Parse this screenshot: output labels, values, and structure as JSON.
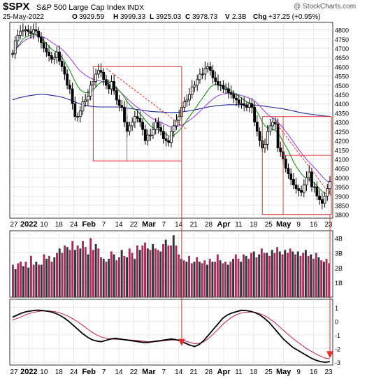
{
  "header": {
    "symbol": "$SPX",
    "name": "S&P 500 Large Cap Index",
    "exchange": "INDX",
    "watermark": "@ StockCharts.com",
    "date": "25-May-2022",
    "open_label": "O",
    "open": "3929.59",
    "high_label": "H",
    "high": "3999.33",
    "low_label": "L",
    "low": "3925.03",
    "close_label": "C",
    "close": "3978.73",
    "volume_label": "V",
    "volume": "2.3B",
    "chg_label": "Chg",
    "chg": "+37.25 (+0.95%)"
  },
  "colors": {
    "frame": "#333333",
    "grid": "#d9d9d9",
    "price_bar": "#000000",
    "ma_green": "#1e8c1e",
    "ma_violet": "#9a4fd6",
    "ma_blue": "#23239b",
    "volume_up": "#a0305f",
    "volume_down": "#333333",
    "annotation": "#e23030",
    "osc_line": "#000000",
    "osc_signal": "#c0306a"
  },
  "x_axis": {
    "top_labels": [
      "27",
      "2022",
      "10",
      "18",
      "24",
      "Feb",
      "7",
      "14",
      "22",
      "Mar",
      "7",
      "14",
      "21",
      "28",
      "Apr",
      "11",
      "18",
      "25",
      "May",
      "9",
      "16",
      "23"
    ],
    "bottom_labels": [
      "27",
      "2022",
      "10",
      "18",
      "24",
      "Feb",
      "7",
      "14",
      "22",
      "Mar",
      "7",
      "14",
      "21",
      "28",
      "Apr",
      "11",
      "18",
      "25",
      "May",
      "9",
      "16",
      "23"
    ]
  },
  "chart_data": [
    {
      "type": "line",
      "panel": "price",
      "title": "$SPX S&P 500 Large Cap Index",
      "ylim": [
        3780,
        4840
      ],
      "yticks": [
        "4800",
        "4750",
        "4700",
        "4650",
        "4600",
        "4550",
        "4500",
        "4450",
        "4400",
        "4350",
        "4300",
        "4250",
        "4200",
        "4150",
        "4100",
        "4050",
        "4000",
        "3950",
        "3900",
        "3850",
        "3800"
      ],
      "close_series": [
        4670,
        4740,
        4770,
        4790,
        4796,
        4800,
        4790,
        4780,
        4800,
        4793,
        4760,
        4730,
        4700,
        4680,
        4660,
        4640,
        4650,
        4680,
        4630,
        4600,
        4560,
        4500,
        4480,
        4400,
        4330,
        4330,
        4360,
        4410,
        4420,
        4440,
        4500,
        4520,
        4560,
        4580,
        4570,
        4530,
        4500,
        4480,
        4520,
        4470,
        4420,
        4390,
        4380,
        4300,
        4250,
        4280,
        4300,
        4330,
        4320,
        4300,
        4260,
        4200,
        4230,
        4230,
        4260,
        4300,
        4270,
        4250,
        4210,
        4200,
        4190,
        4250,
        4280,
        4310,
        4330,
        4380,
        4410,
        4420,
        4450,
        4490,
        4500,
        4530,
        4560,
        4560,
        4590,
        4600,
        4580,
        4540,
        4520,
        4500,
        4500,
        4480,
        4480,
        4460,
        4450,
        4430,
        4420,
        4400,
        4400,
        4390,
        4380,
        4400,
        4380,
        4300,
        4250,
        4200,
        4160,
        4180,
        4250,
        4280,
        4300,
        4290,
        4160,
        4140,
        4100,
        4050,
        4020,
        3990,
        3960,
        3940,
        3930,
        3920,
        3960,
        4000,
        4030,
        3950,
        3950,
        3900,
        3880,
        3860,
        3900,
        3940,
        3979
      ],
      "ma_short": [
        4670,
        4690,
        4710,
        4730,
        4750,
        4760,
        4765,
        4770,
        4775,
        4775,
        4765,
        4755,
        4740,
        4725,
        4710,
        4695,
        4685,
        4680,
        4665,
        4650,
        4630,
        4605,
        4580,
        4550,
        4520,
        4495,
        4475,
        4465,
        4460,
        4460,
        4465,
        4475,
        4490,
        4505,
        4515,
        4520,
        4520,
        4515,
        4510,
        4500,
        4485,
        4470,
        4455,
        4435,
        4410,
        4395,
        4380,
        4370,
        4360,
        4345,
        4330,
        4310,
        4295,
        4280,
        4270,
        4265,
        4260,
        4255,
        4245,
        4235,
        4225,
        4225,
        4230,
        4240,
        4255,
        4270,
        4290,
        4310,
        4330,
        4350,
        4370,
        4390,
        4410,
        4430,
        4450,
        4470,
        4490,
        4500,
        4505,
        4505,
        4500,
        4495,
        4490,
        4480,
        4470,
        4460,
        4450,
        4440,
        4430,
        4420,
        4410,
        4405,
        4400,
        4380,
        4355,
        4330,
        4300,
        4280,
        4270,
        4265,
        4260,
        4255,
        4240,
        4220,
        4195,
        4170,
        4145,
        4115,
        4085,
        4060,
        4040,
        4020,
        4005,
        3995,
        3990,
        3980,
        3970,
        3955,
        3940,
        3925,
        3915,
        3915,
        3925
      ],
      "ma_mid": [
        4670,
        4690,
        4705,
        4720,
        4735,
        4745,
        4752,
        4758,
        4763,
        4768,
        4768,
        4765,
        4760,
        4752,
        4743,
        4733,
        4723,
        4715,
        4705,
        4693,
        4680,
        4665,
        4648,
        4630,
        4610,
        4592,
        4577,
        4565,
        4555,
        4545,
        4538,
        4532,
        4528,
        4525,
        4522,
        4518,
        4512,
        4505,
        4498,
        4490,
        4480,
        4468,
        4456,
        4442,
        4428,
        4415,
        4402,
        4390,
        4380,
        4370,
        4360,
        4348,
        4337,
        4326,
        4318,
        4312,
        4306,
        4300,
        4292,
        4285,
        4278,
        4275,
        4274,
        4276,
        4280,
        4285,
        4292,
        4300,
        4310,
        4320,
        4332,
        4345,
        4358,
        4372,
        4386,
        4400,
        4413,
        4425,
        4435,
        4443,
        4448,
        4452,
        4455,
        4457,
        4457,
        4455,
        4452,
        4448,
        4444,
        4440,
        4435,
        4430,
        4425,
        4415,
        4402,
        4388,
        4372,
        4357,
        4343,
        4332,
        4322,
        4313,
        4300,
        4285,
        4268,
        4250,
        4232,
        4212,
        4192,
        4172,
        4152,
        4133,
        4115,
        4098,
        4083,
        4068,
        4053,
        4038,
        4022,
        4006,
        3992,
        3980,
        3970
      ],
      "ma_long": [
        4420,
        4425,
        4430,
        4433,
        4436,
        4439,
        4442,
        4444,
        4446,
        4448,
        4449,
        4450,
        4450,
        4449,
        4447,
        4445,
        4443,
        4441,
        4438,
        4435,
        4431,
        4426,
        4421,
        4415,
        4409,
        4403,
        4398,
        4394,
        4391,
        4388,
        4386,
        4384,
        4383,
        4382,
        4382,
        4382,
        4382,
        4382,
        4382,
        4382,
        4382,
        4381,
        4380,
        4378,
        4376,
        4374,
        4372,
        4370,
        4368,
        4366,
        4364,
        4362,
        4360,
        4358,
        4357,
        4356,
        4355,
        4355,
        4354,
        4353,
        4352,
        4352,
        4352,
        4353,
        4354,
        4355,
        4357,
        4359,
        4361,
        4363,
        4366,
        4369,
        4372,
        4375,
        4378,
        4381,
        4384,
        4386,
        4388,
        4390,
        4391,
        4392,
        4393,
        4394,
        4394,
        4394,
        4394,
        4394,
        4394,
        4393,
        4393,
        4393,
        4393,
        4392,
        4391,
        4390,
        4388,
        4386,
        4384,
        4382,
        4380,
        4378,
        4376,
        4374,
        4372,
        4369,
        4366,
        4363,
        4360,
        4357,
        4354,
        4351,
        4348,
        4346,
        4344,
        4342,
        4340,
        4338,
        4336,
        4334,
        4333,
        4332,
        4331
      ],
      "annotations": [
        "Feb consolidation box",
        "Feb-Mar declining trendline",
        "May consolidation box",
        "May declining trendline"
      ]
    },
    {
      "type": "bar",
      "panel": "volume",
      "ylim": [
        0,
        4.5
      ],
      "yticks": [
        "4B",
        "3B",
        "2B",
        "1B"
      ],
      "values": [
        2.2,
        1.9,
        2.3,
        2.4,
        2.1,
        2.4,
        2.0,
        2.8,
        2.2,
        2.4,
        2.2,
        2.2,
        2.9,
        2.6,
        2.8,
        2.4,
        2.7,
        3.0,
        3.3,
        3.0,
        3.5,
        3.4,
        3.2,
        3.8,
        3.2,
        3.5,
        3.3,
        3.8,
        3.4,
        2.9,
        4.0,
        3.2,
        3.6,
        3.3,
        2.7,
        2.6,
        2.4,
        2.6,
        3.1,
        2.9,
        2.5,
        2.7,
        3.2,
        2.8,
        2.7,
        3.3,
        3.0,
        2.6,
        3.5,
        3.2,
        3.5,
        3.7,
        3.3,
        3.2,
        3.6,
        3.3,
        3.2,
        3.1,
        3.6,
        3.9,
        3.5,
        3.5,
        4.2,
        3.5,
        2.9,
        2.6,
        2.5,
        2.4,
        2.8,
        2.3,
        2.4,
        2.7,
        2.4,
        2.3,
        2.5,
        2.2,
        2.6,
        2.4,
        2.4,
        2.9,
        2.5,
        2.3,
        2.4,
        2.2,
        2.4,
        2.6,
        2.9,
        2.6,
        2.4,
        2.9,
        2.8,
        2.6,
        3.0,
        3.1,
        2.7,
        2.9,
        3.3,
        3.0,
        3.0,
        2.8,
        3.2,
        3.0,
        3.4,
        3.1,
        2.9,
        3.2,
        3.0,
        3.3,
        3.1,
        2.9,
        3.1,
        2.8,
        3.0,
        3.2,
        2.8,
        2.9,
        2.6,
        3.0,
        2.7,
        2.5,
        2.4,
        2.6,
        2.3
      ],
      "up_down": [
        1,
        0,
        1,
        1,
        0,
        1,
        0,
        1,
        1,
        0,
        1,
        0,
        1,
        0,
        1,
        1,
        0,
        1,
        0,
        1,
        1,
        0,
        1,
        1,
        0,
        1,
        0,
        1,
        1,
        0,
        1,
        1,
        0,
        1,
        1,
        0,
        1,
        0,
        1,
        0,
        1,
        1,
        0,
        1,
        0,
        1,
        1,
        0,
        1,
        0,
        1,
        1,
        0,
        1,
        0,
        1,
        1,
        0,
        1,
        0,
        1,
        1,
        0,
        1,
        1,
        0,
        1,
        0,
        1,
        1,
        0,
        1,
        0,
        1,
        1,
        0,
        1,
        0,
        1,
        1,
        0,
        1,
        1,
        0,
        1,
        0,
        1,
        1,
        0,
        1,
        0,
        1,
        1,
        0,
        1,
        0,
        1,
        1,
        0,
        1,
        0,
        1,
        1,
        0,
        1,
        0,
        1,
        1,
        0,
        1,
        0,
        1,
        1,
        0,
        1,
        0,
        1,
        1,
        0,
        1,
        0,
        1,
        1,
        0
      ]
    },
    {
      "type": "line",
      "panel": "oscillator",
      "ylim": [
        -3.2,
        1.6
      ],
      "yticks": [
        "1",
        "0",
        "-1",
        "-2",
        "-3"
      ],
      "line": [
        0.3,
        0.45,
        0.6,
        0.7,
        0.75,
        0.8,
        0.8,
        0.75,
        0.7,
        0.6,
        0.45,
        0.25,
        0.0,
        -0.3,
        -0.6,
        -0.9,
        -1.15,
        -1.35,
        -1.45,
        -1.5,
        -1.4,
        -1.3,
        -1.25,
        -1.3,
        -1.35,
        -1.4,
        -1.45,
        -1.5,
        -1.55,
        -1.55,
        -1.5,
        -1.45,
        -1.4,
        -1.35,
        -1.3,
        -1.35,
        -1.45,
        -1.6,
        -1.75,
        -1.85,
        -1.7,
        -1.4,
        -1.0,
        -0.6,
        -0.2,
        0.2,
        0.45,
        0.6,
        0.7,
        0.8,
        0.78,
        0.72,
        0.62,
        0.45,
        0.2,
        -0.1,
        -0.5,
        -0.9,
        -1.3,
        -1.6,
        -1.9,
        -2.1,
        -2.3,
        -2.5,
        -2.7,
        -2.85,
        -2.95,
        -3.0,
        -2.95
      ],
      "signal": [
        0.1,
        0.2,
        0.35,
        0.5,
        0.6,
        0.68,
        0.73,
        0.75,
        0.74,
        0.7,
        0.62,
        0.5,
        0.35,
        0.15,
        -0.05,
        -0.3,
        -0.55,
        -0.8,
        -1.0,
        -1.15,
        -1.25,
        -1.3,
        -1.32,
        -1.33,
        -1.34,
        -1.36,
        -1.38,
        -1.42,
        -1.46,
        -1.5,
        -1.5,
        -1.48,
        -1.45,
        -1.42,
        -1.38,
        -1.36,
        -1.38,
        -1.45,
        -1.55,
        -1.65,
        -1.62,
        -1.5,
        -1.25,
        -0.95,
        -0.6,
        -0.25,
        0.05,
        0.3,
        0.48,
        0.6,
        0.66,
        0.67,
        0.64,
        0.55,
        0.4,
        0.2,
        -0.05,
        -0.35,
        -0.65,
        -0.95,
        -1.25,
        -1.5,
        -1.75,
        -2.0,
        -2.2,
        -2.4,
        -2.55,
        -2.7,
        -2.75
      ]
    }
  ]
}
